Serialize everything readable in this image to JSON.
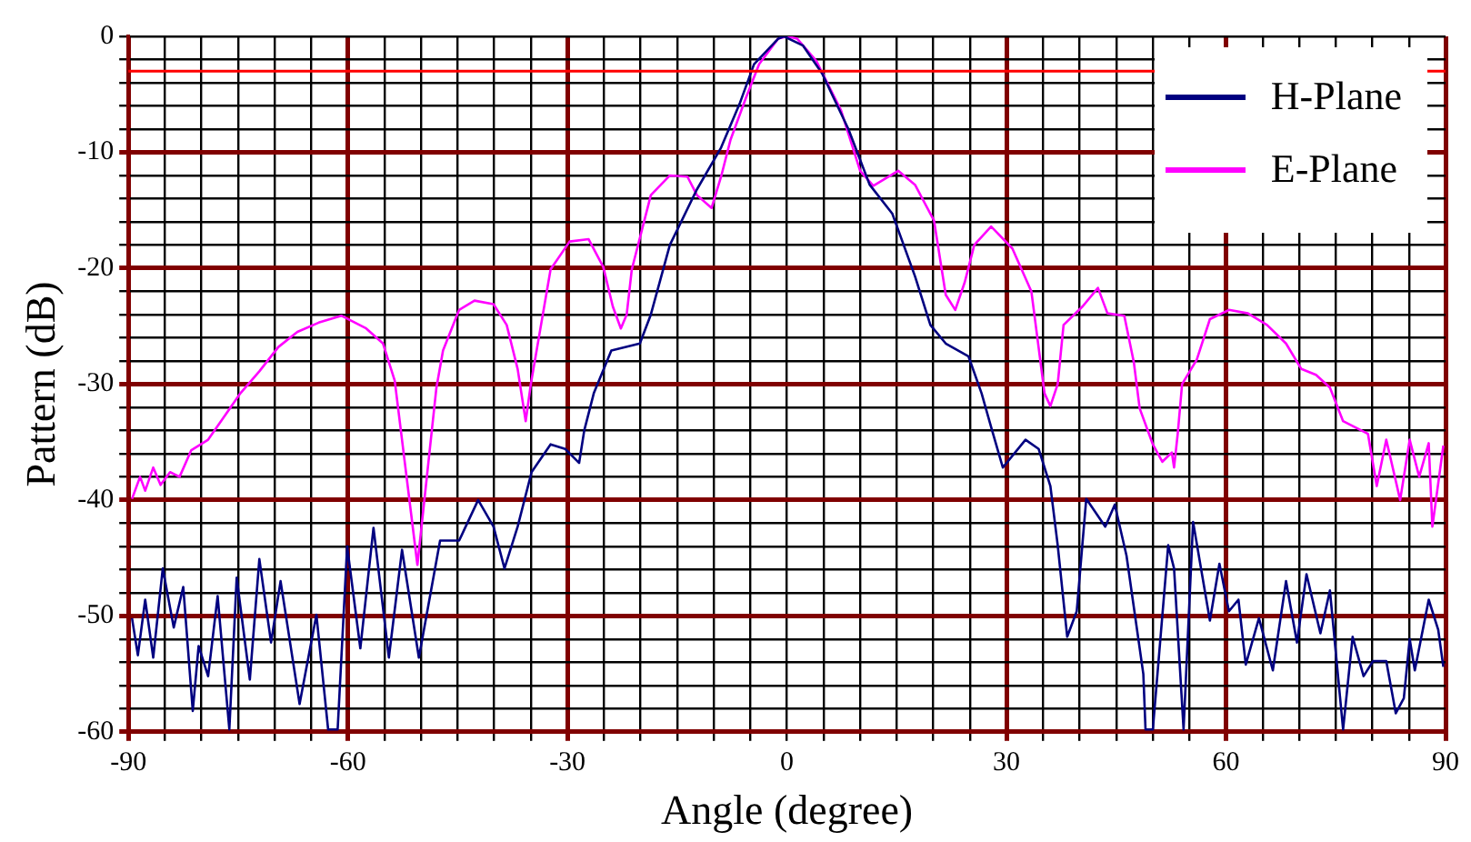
{
  "chart_data": {
    "type": "line",
    "xlabel": "Angle (degree)",
    "ylabel": "Pattern (dB)",
    "xlim": [
      -90,
      90
    ],
    "ylim": [
      -60,
      0
    ],
    "xticks": [
      -90,
      {
        "value": -85,
        "label": null
      },
      {
        "value": -80,
        "label": null
      },
      {
        "value": -75,
        "label": null
      },
      {
        "value": -70,
        "label": null
      },
      {
        "value": -65,
        "label": null
      },
      -60,
      {
        "value": -55,
        "label": null
      },
      {
        "value": -50,
        "label": null
      },
      {
        "value": -45,
        "label": null
      },
      {
        "value": -40,
        "label": null
      },
      {
        "value": -35,
        "label": null
      },
      -30,
      {
        "value": -25,
        "label": null
      },
      {
        "value": -20,
        "label": null
      },
      {
        "value": -15,
        "label": null
      },
      {
        "value": -10,
        "label": null
      },
      {
        "value": -5,
        "label": null
      },
      0,
      {
        "value": 5,
        "label": null
      },
      {
        "value": 10,
        "label": null
      },
      {
        "value": 15,
        "label": null
      },
      {
        "value": 20,
        "label": null
      },
      {
        "value": 25,
        "label": null
      },
      30,
      {
        "value": 35,
        "label": null
      },
      {
        "value": 40,
        "label": null
      },
      {
        "value": 45,
        "label": null
      },
      {
        "value": 50,
        "label": null
      },
      {
        "value": 55,
        "label": null
      },
      60,
      {
        "value": 65,
        "label": null
      },
      {
        "value": 70,
        "label": null
      },
      {
        "value": 75,
        "label": null
      },
      {
        "value": 80,
        "label": null
      },
      {
        "value": 85,
        "label": null
      },
      90
    ],
    "yticks": [
      -60,
      {
        "value": -58,
        "label": null
      },
      {
        "value": -56,
        "label": null
      },
      {
        "value": -54,
        "label": null
      },
      {
        "value": -52,
        "label": null
      },
      -50,
      {
        "value": -48,
        "label": null
      },
      {
        "value": -46,
        "label": null
      },
      {
        "value": -44,
        "label": null
      },
      {
        "value": -42,
        "label": null
      },
      -40,
      {
        "value": -38,
        "label": null
      },
      {
        "value": -36,
        "label": null
      },
      {
        "value": -34,
        "label": null
      },
      {
        "value": -32,
        "label": null
      },
      -30,
      {
        "value": -28,
        "label": null
      },
      {
        "value": -26,
        "label": null
      },
      {
        "value": -24,
        "label": null
      },
      {
        "value": -22,
        "label": null
      },
      -20,
      {
        "value": -18,
        "label": null
      },
      {
        "value": -16,
        "label": null
      },
      {
        "value": -14,
        "label": null
      },
      {
        "value": -12,
        "label": null
      },
      -10,
      {
        "value": -8,
        "label": null
      },
      {
        "value": -6,
        "label": null
      },
      {
        "value": -4,
        "label": null
      },
      {
        "value": -2,
        "label": null
      },
      0
    ],
    "grid": true,
    "legend": "top right",
    "marker": "none",
    "line_style": "solid",
    "ref_lines": [
      {
        "axis": "y",
        "value": -3,
        "color": "#ff0000"
      }
    ],
    "series": [
      {
        "name": "H-Plane",
        "color": "#000080",
        "x": [
          -89.5,
          -88.7,
          -87.7,
          -86.6,
          -85.3,
          -83.8,
          -82.5,
          -81.2,
          -80.4,
          -79.1,
          -77.8,
          -76.2,
          -75.2,
          -73.4,
          -72.1,
          -70.5,
          -69.2,
          -66.6,
          -64.3,
          -62.7,
          -61.4,
          -60.1,
          -58.3,
          -56.5,
          -54.4,
          -52.6,
          -50.3,
          -47.4,
          -44.8,
          -42.2,
          -40.1,
          -38.6,
          -36.8,
          -34.9,
          -32.3,
          -30.3,
          -28.4,
          -27.7,
          -26.4,
          -24,
          -20.1,
          -18.6,
          -16,
          -12.3,
          -9,
          -6.4,
          -4.5,
          -1.2,
          -0.4,
          2.2,
          4.8,
          8.4,
          11.3,
          14.4,
          17.5,
          19.6,
          21.7,
          24.8,
          26.6,
          27.9,
          29.5,
          32.6,
          34.4,
          36,
          37,
          38.3,
          39.6,
          40.9,
          43.5,
          44.8,
          46.4,
          48.7,
          49,
          50,
          52.1,
          52.9,
          54.2,
          55.5,
          57.8,
          59.1,
          60.4,
          61.7,
          62.7,
          64.5,
          66.4,
          68.2,
          69.7,
          71,
          72.9,
          74.2,
          76,
          77.3,
          78.8,
          80.1,
          81.9,
          83.2,
          84.3,
          85.1,
          85.8,
          87.7,
          89,
          89.7
        ],
        "values": [
          -50.2,
          -53.4,
          -48.6,
          -53.6,
          -45.9,
          -51,
          -47.5,
          -58.2,
          -52.6,
          -55.2,
          -48.3,
          -59.8,
          -46.7,
          -55.5,
          -45.1,
          -52.3,
          -47,
          -57.6,
          -49.9,
          -59.8,
          -59.8,
          -44,
          -52.8,
          -42.4,
          -53.6,
          -44.3,
          -53.6,
          -43.5,
          -43.5,
          -40,
          -42.3,
          -45.9,
          -42.3,
          -37.6,
          -35.2,
          -35.6,
          -36.8,
          -34,
          -30.8,
          -27.1,
          -26.5,
          -24,
          -18,
          -13.2,
          -9.6,
          -5.7,
          -2.4,
          -0.2,
          0,
          -0.8,
          -3.2,
          -8,
          -12.8,
          -15.3,
          -20.7,
          -24.9,
          -26.5,
          -27.6,
          -30.8,
          -33.7,
          -37.2,
          -34.8,
          -35.6,
          -38.8,
          -43.9,
          -51.8,
          -49.6,
          -39.9,
          -42.3,
          -40.4,
          -44.8,
          -55,
          -59.8,
          -59.8,
          -43.9,
          -45.9,
          -59.8,
          -41.9,
          -50.4,
          -45.5,
          -49.6,
          -48.6,
          -54.2,
          -50.2,
          -54.7,
          -47,
          -52.3,
          -46.4,
          -51.5,
          -47.8,
          -59.8,
          -51.8,
          -55.2,
          -53.9,
          -53.9,
          -58.4,
          -57.1,
          -52,
          -54.7,
          -48.6,
          -51.2,
          -54.4
        ]
      },
      {
        "name": "E-Plane",
        "color": "#ff00ff",
        "x": [
          -89.5,
          -88.4,
          -87.7,
          -86.6,
          -85.6,
          -84.3,
          -83,
          -81.4,
          -79.1,
          -77,
          -74.7,
          -72.1,
          -69.5,
          -66.9,
          -64,
          -60.9,
          -57.5,
          -55.2,
          -53.6,
          -50.5,
          -47.9,
          -47,
          -44.8,
          -42.7,
          -40.1,
          -38.3,
          -36.8,
          -35.7,
          -35,
          -32.3,
          -29.7,
          -27.1,
          -25.1,
          -23.8,
          -22.7,
          -21.9,
          -21.2,
          -18.6,
          -16,
          -13.6,
          -12.3,
          -10.3,
          -9,
          -7.7,
          -5.6,
          -3.8,
          -1.2,
          0,
          1.4,
          4,
          7.4,
          10,
          11.8,
          15.2,
          17.5,
          20.1,
          21.7,
          23,
          24.3,
          25.6,
          27.9,
          30.8,
          33.4,
          35.2,
          36,
          37,
          37.8,
          40.4,
          42.5,
          43.8,
          46.1,
          47.4,
          48.2,
          50,
          51.3,
          52.6,
          52.9,
          53.4,
          54,
          56,
          57.8,
          60.4,
          63,
          65.6,
          68.2,
          70.3,
          72.3,
          74.2,
          76,
          79.4,
          80.6,
          81.9,
          83.8,
          85.1,
          86.4,
          87.7,
          88.2,
          89.7
        ],
        "values": [
          -39.9,
          -38,
          -39.2,
          -37.2,
          -38.7,
          -37.6,
          -38,
          -35.7,
          -34.8,
          -32.9,
          -30.8,
          -28.9,
          -26.8,
          -25.5,
          -24.7,
          -24.1,
          -25.2,
          -26.5,
          -29.7,
          -45.6,
          -30.3,
          -27.1,
          -23.6,
          -22.8,
          -23.1,
          -24.9,
          -28.7,
          -33.2,
          -30,
          -20.1,
          -17.7,
          -17.5,
          -19.9,
          -23.3,
          -25.2,
          -24,
          -20.1,
          -13.7,
          -12,
          -12.1,
          -13.7,
          -14.8,
          -12.1,
          -8.9,
          -5.3,
          -2.4,
          -0.2,
          0,
          -0.2,
          -2.1,
          -6.4,
          -11.6,
          -12.9,
          -11.6,
          -12.8,
          -15.9,
          -22.3,
          -23.6,
          -21.2,
          -18,
          -16.4,
          -18.3,
          -22,
          -30.8,
          -31.9,
          -30,
          -24.9,
          -23.3,
          -21.7,
          -23.9,
          -24.1,
          -28.1,
          -32.1,
          -35.2,
          -36.7,
          -35.9,
          -37.2,
          -34.3,
          -30,
          -27.9,
          -24.4,
          -23.6,
          -23.9,
          -24.9,
          -26.5,
          -28.7,
          -29.2,
          -30.3,
          -33.2,
          -34.3,
          -38.8,
          -34.8,
          -40,
          -34.8,
          -38,
          -35.1,
          -42.3,
          -35.3
        ]
      }
    ]
  }
}
